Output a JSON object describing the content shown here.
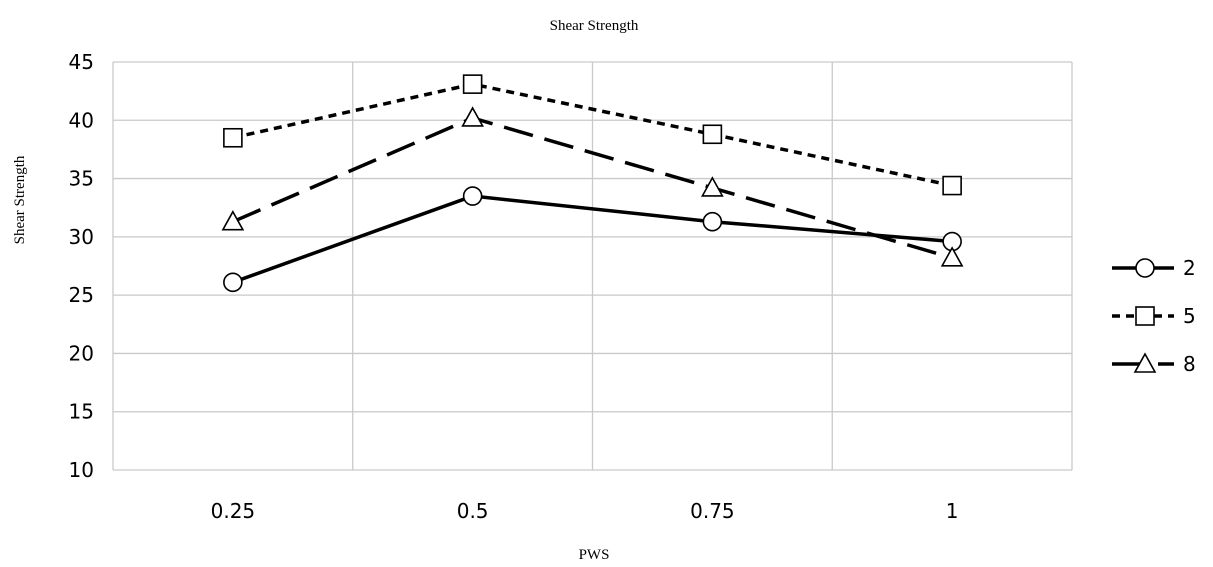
{
  "chart_data": {
    "type": "line",
    "title": "Shear Strength",
    "xlabel": "PWS",
    "ylabel": "Shear Strength",
    "categories": [
      "0.25",
      "0.5",
      "0.75",
      "1"
    ],
    "ylim": [
      10,
      45
    ],
    "yticks": [
      10,
      15,
      20,
      25,
      30,
      35,
      40,
      45
    ],
    "grid": true,
    "legend_position": "right",
    "series": [
      {
        "name": "2",
        "values": [
          26.1,
          33.5,
          31.3,
          29.6
        ],
        "marker": "circle",
        "dash": "solid"
      },
      {
        "name": "5",
        "values": [
          38.5,
          43.1,
          38.8,
          34.4
        ],
        "marker": "square",
        "dash": "short-dash"
      },
      {
        "name": "8",
        "values": [
          31.3,
          40.2,
          34.2,
          28.2
        ],
        "marker": "triangle",
        "dash": "long-dash"
      }
    ]
  }
}
